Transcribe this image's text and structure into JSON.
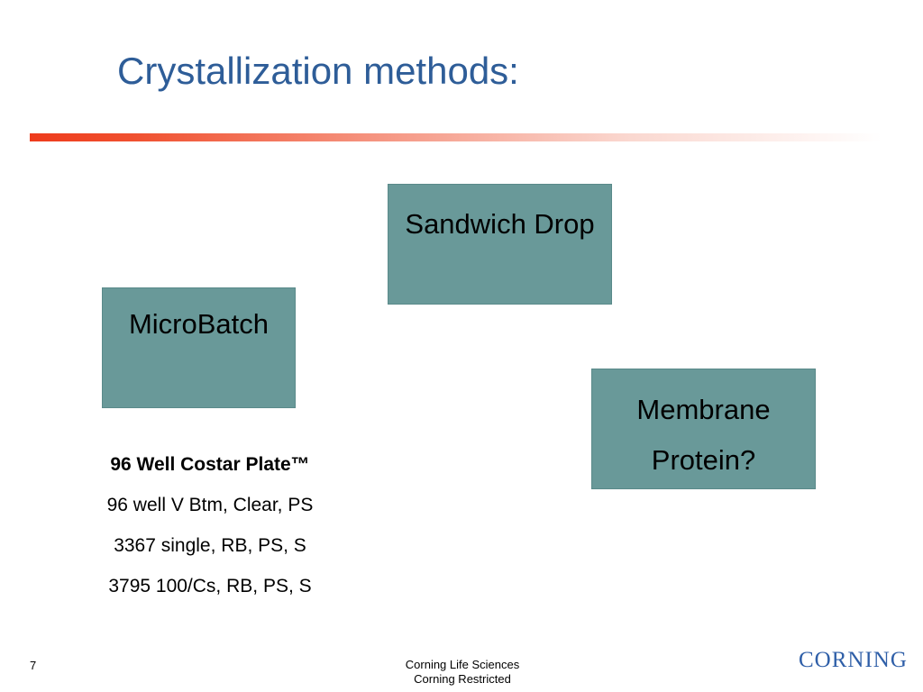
{
  "slide": {
    "title": "Crystallization methods:"
  },
  "boxes": {
    "sandwich_drop": "Sandwich Drop",
    "microbatch": "MicroBatch",
    "membrane_line1": "Membrane",
    "membrane_line2": "Protein?"
  },
  "plate_info": {
    "heading": "96 Well Costar Plate™",
    "lines": [
      "96 well V Btm, Clear, PS",
      "3367 single, RB, PS, S",
      "3795 100/Cs, RB, PS, S"
    ]
  },
  "footer": {
    "page_number": "7",
    "line1": "Corning Life Sciences",
    "line2": "Corning Restricted",
    "logo": "CORNING"
  },
  "colors": {
    "title": "#2e5d98",
    "box_fill": "#699999",
    "rule_start": "#ee3b1c",
    "logo": "#2f5fa8"
  }
}
